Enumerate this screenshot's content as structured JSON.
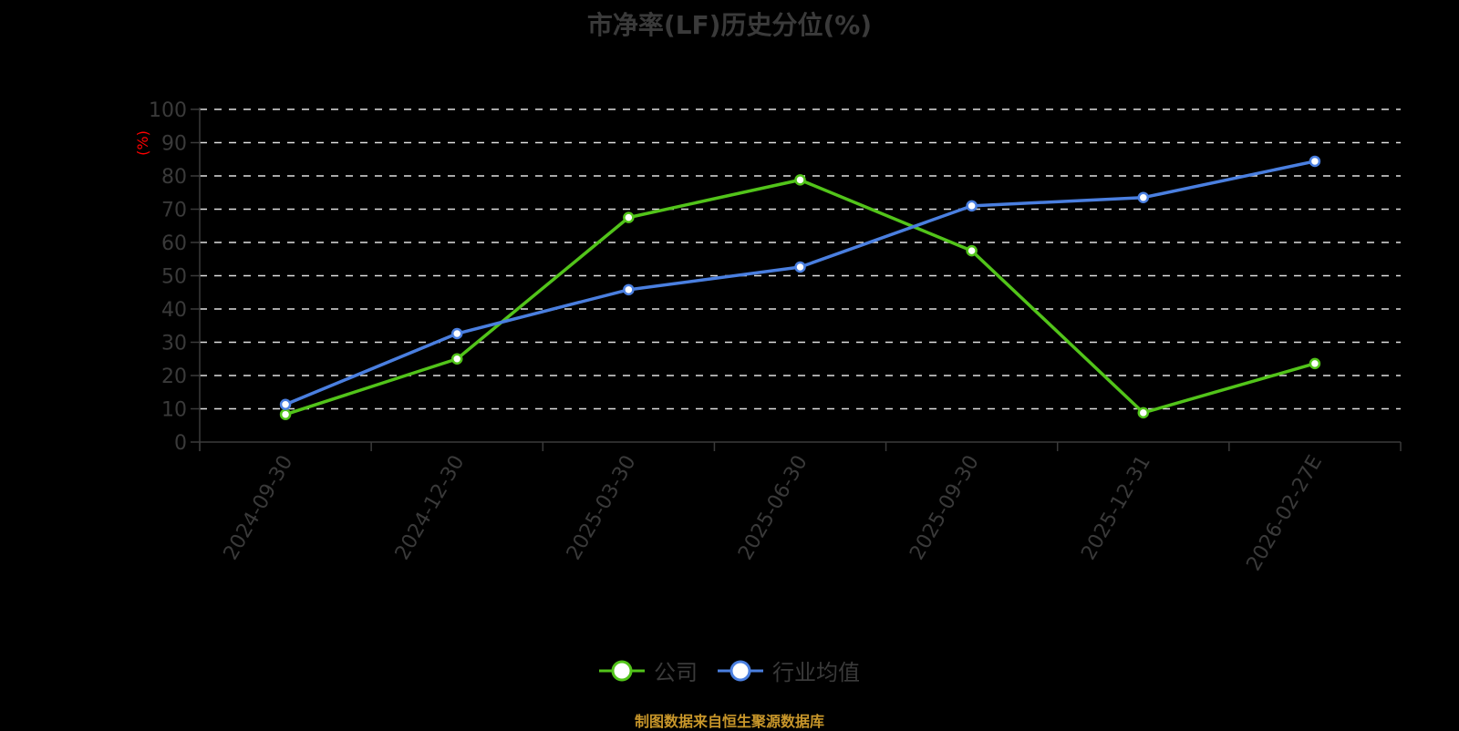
{
  "title": "市净率(LF)历史分位(%)",
  "y_axis_unit": "(%)",
  "legend": [
    {
      "label": "公司",
      "color": "#52c41a"
    },
    {
      "label": "行业均值",
      "color": "#4a7fe0"
    }
  ],
  "source_note": "制图数据来自恒生聚源数据库",
  "chart_data": {
    "type": "line",
    "title": "市净率(LF)历史分位(%)",
    "xlabel": "",
    "ylabel": "(%)",
    "ylim": [
      0,
      100
    ],
    "yticks": [
      0,
      10,
      20,
      30,
      40,
      50,
      60,
      70,
      80,
      90,
      100
    ],
    "grid": true,
    "legend_position": "bottom",
    "categories": [
      "2024-09-30",
      "2024-12-30",
      "2025-03-30",
      "2025-06-30",
      "2025-09-30",
      "2025-12-31",
      "2026-02-27E"
    ],
    "series": [
      {
        "name": "公司",
        "color": "#52c41a",
        "values": [
          8.3,
          25.0,
          67.5,
          78.8,
          57.5,
          8.8,
          23.6
        ]
      },
      {
        "name": "行业均值",
        "color": "#4a7fe0",
        "values": [
          11.3,
          32.6,
          45.8,
          52.6,
          71.0,
          73.5,
          84.4
        ]
      }
    ]
  }
}
